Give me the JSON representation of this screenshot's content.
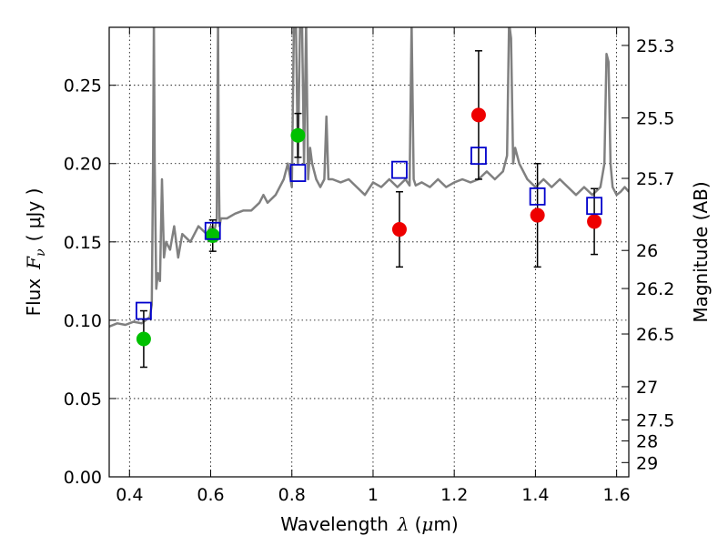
{
  "chart_data": {
    "type": "scatter",
    "title": "",
    "xlabel": {
      "prefix": "Wavelength",
      "symbol": "λ",
      "unit_open": "(",
      "unit_mu": "μ",
      "unit_rest": "m)"
    },
    "ylabel": {
      "prefix": "Flux",
      "symbol": "F",
      "subscript": "ν",
      "unit": "( μJy )"
    },
    "y2label": "Magnitude (AB)",
    "xlim": [
      0.35,
      1.63
    ],
    "ylim": [
      0.0,
      0.287
    ],
    "grid": true,
    "x_ticks": [
      {
        "value": 0.4,
        "label": "0.4"
      },
      {
        "value": 0.6,
        "label": "0.6"
      },
      {
        "value": 0.8,
        "label": "0.8"
      },
      {
        "value": 1.0,
        "label": "1"
      },
      {
        "value": 1.2,
        "label": "1.2"
      },
      {
        "value": 1.4,
        "label": "1.4"
      },
      {
        "value": 1.6,
        "label": "1.6"
      }
    ],
    "y_ticks": [
      {
        "value": 0.0,
        "label": "0.00"
      },
      {
        "value": 0.05,
        "label": "0.05"
      },
      {
        "value": 0.1,
        "label": "0.10"
      },
      {
        "value": 0.15,
        "label": "0.15"
      },
      {
        "value": 0.2,
        "label": "0.20"
      },
      {
        "value": 0.25,
        "label": "0.25"
      }
    ],
    "mag_ticks": [
      {
        "mag": 25.3,
        "label": "25.3"
      },
      {
        "mag": 25.5,
        "label": "25.5"
      },
      {
        "mag": 25.7,
        "label": "25.7"
      },
      {
        "mag": 26.0,
        "label": "26"
      },
      {
        "mag": 26.2,
        "label": "26.2"
      },
      {
        "mag": 26.5,
        "label": "26.5"
      },
      {
        "mag": 27.0,
        "label": "27"
      },
      {
        "mag": 27.5,
        "label": "27.5"
      },
      {
        "mag": 28.0,
        "label": "28"
      },
      {
        "mag": 29.0,
        "label": "29"
      }
    ],
    "series": [
      {
        "kind": "line",
        "color": "#808080",
        "x": [
          0.35,
          0.37,
          0.39,
          0.41,
          0.43,
          0.44,
          0.45,
          0.455,
          0.458,
          0.46,
          0.462,
          0.466,
          0.47,
          0.475,
          0.48,
          0.485,
          0.49,
          0.5,
          0.51,
          0.52,
          0.53,
          0.55,
          0.57,
          0.59,
          0.6,
          0.61,
          0.615,
          0.618,
          0.62,
          0.622,
          0.625,
          0.64,
          0.66,
          0.68,
          0.7,
          0.72,
          0.73,
          0.74,
          0.76,
          0.78,
          0.79,
          0.8,
          0.805,
          0.81,
          0.815,
          0.82,
          0.825,
          0.83,
          0.835,
          0.84,
          0.845,
          0.85,
          0.86,
          0.87,
          0.88,
          0.885,
          0.89,
          0.9,
          0.92,
          0.94,
          0.96,
          0.98,
          1.0,
          1.02,
          1.04,
          1.06,
          1.08,
          1.09,
          1.095,
          1.1,
          1.105,
          1.12,
          1.14,
          1.16,
          1.18,
          1.2,
          1.22,
          1.24,
          1.26,
          1.28,
          1.3,
          1.32,
          1.33,
          1.335,
          1.34,
          1.345,
          1.35,
          1.36,
          1.38,
          1.4,
          1.42,
          1.44,
          1.46,
          1.48,
          1.5,
          1.52,
          1.54,
          1.56,
          1.57,
          1.575,
          1.58,
          1.585,
          1.59,
          1.6,
          1.61,
          1.62,
          1.63
        ],
        "y": [
          0.096,
          0.098,
          0.097,
          0.099,
          0.098,
          0.1,
          0.102,
          0.11,
          0.2,
          0.29,
          0.2,
          0.12,
          0.13,
          0.125,
          0.19,
          0.14,
          0.15,
          0.145,
          0.16,
          0.14,
          0.155,
          0.15,
          0.16,
          0.155,
          0.16,
          0.158,
          0.165,
          0.29,
          0.2,
          0.16,
          0.165,
          0.165,
          0.168,
          0.17,
          0.17,
          0.175,
          0.18,
          0.175,
          0.18,
          0.19,
          0.2,
          0.185,
          0.29,
          0.29,
          0.2,
          0.29,
          0.29,
          0.2,
          0.29,
          0.19,
          0.21,
          0.2,
          0.19,
          0.185,
          0.19,
          0.23,
          0.19,
          0.19,
          0.188,
          0.19,
          0.185,
          0.18,
          0.188,
          0.185,
          0.19,
          0.185,
          0.19,
          0.186,
          0.29,
          0.19,
          0.186,
          0.188,
          0.185,
          0.19,
          0.185,
          0.188,
          0.19,
          0.188,
          0.19,
          0.195,
          0.19,
          0.195,
          0.205,
          0.29,
          0.28,
          0.2,
          0.21,
          0.2,
          0.19,
          0.185,
          0.19,
          0.185,
          0.19,
          0.185,
          0.18,
          0.185,
          0.18,
          0.185,
          0.2,
          0.27,
          0.265,
          0.2,
          0.185,
          0.18,
          0.182,
          0.185,
          0.182
        ]
      },
      {
        "kind": "points",
        "marker": "circle",
        "color": "#00c000",
        "x": [
          0.435,
          0.605,
          0.815
        ],
        "y": [
          0.088,
          0.154,
          0.218
        ],
        "yerr": [
          0.018,
          0.01,
          0.014
        ]
      },
      {
        "kind": "points",
        "marker": "circle",
        "color": "#ee0000",
        "x": [
          1.065,
          1.26,
          1.405,
          1.545
        ],
        "y": [
          0.158,
          0.231,
          0.167,
          0.163
        ],
        "yerr": [
          0.024,
          0.041,
          0.033,
          0.021
        ]
      },
      {
        "kind": "points",
        "marker": "open-square",
        "color": "#0000cc",
        "x": [
          0.435,
          0.605,
          0.815,
          1.065,
          1.26,
          1.405,
          1.545
        ],
        "y": [
          0.106,
          0.157,
          0.194,
          0.196,
          0.205,
          0.179,
          0.173
        ]
      }
    ]
  }
}
